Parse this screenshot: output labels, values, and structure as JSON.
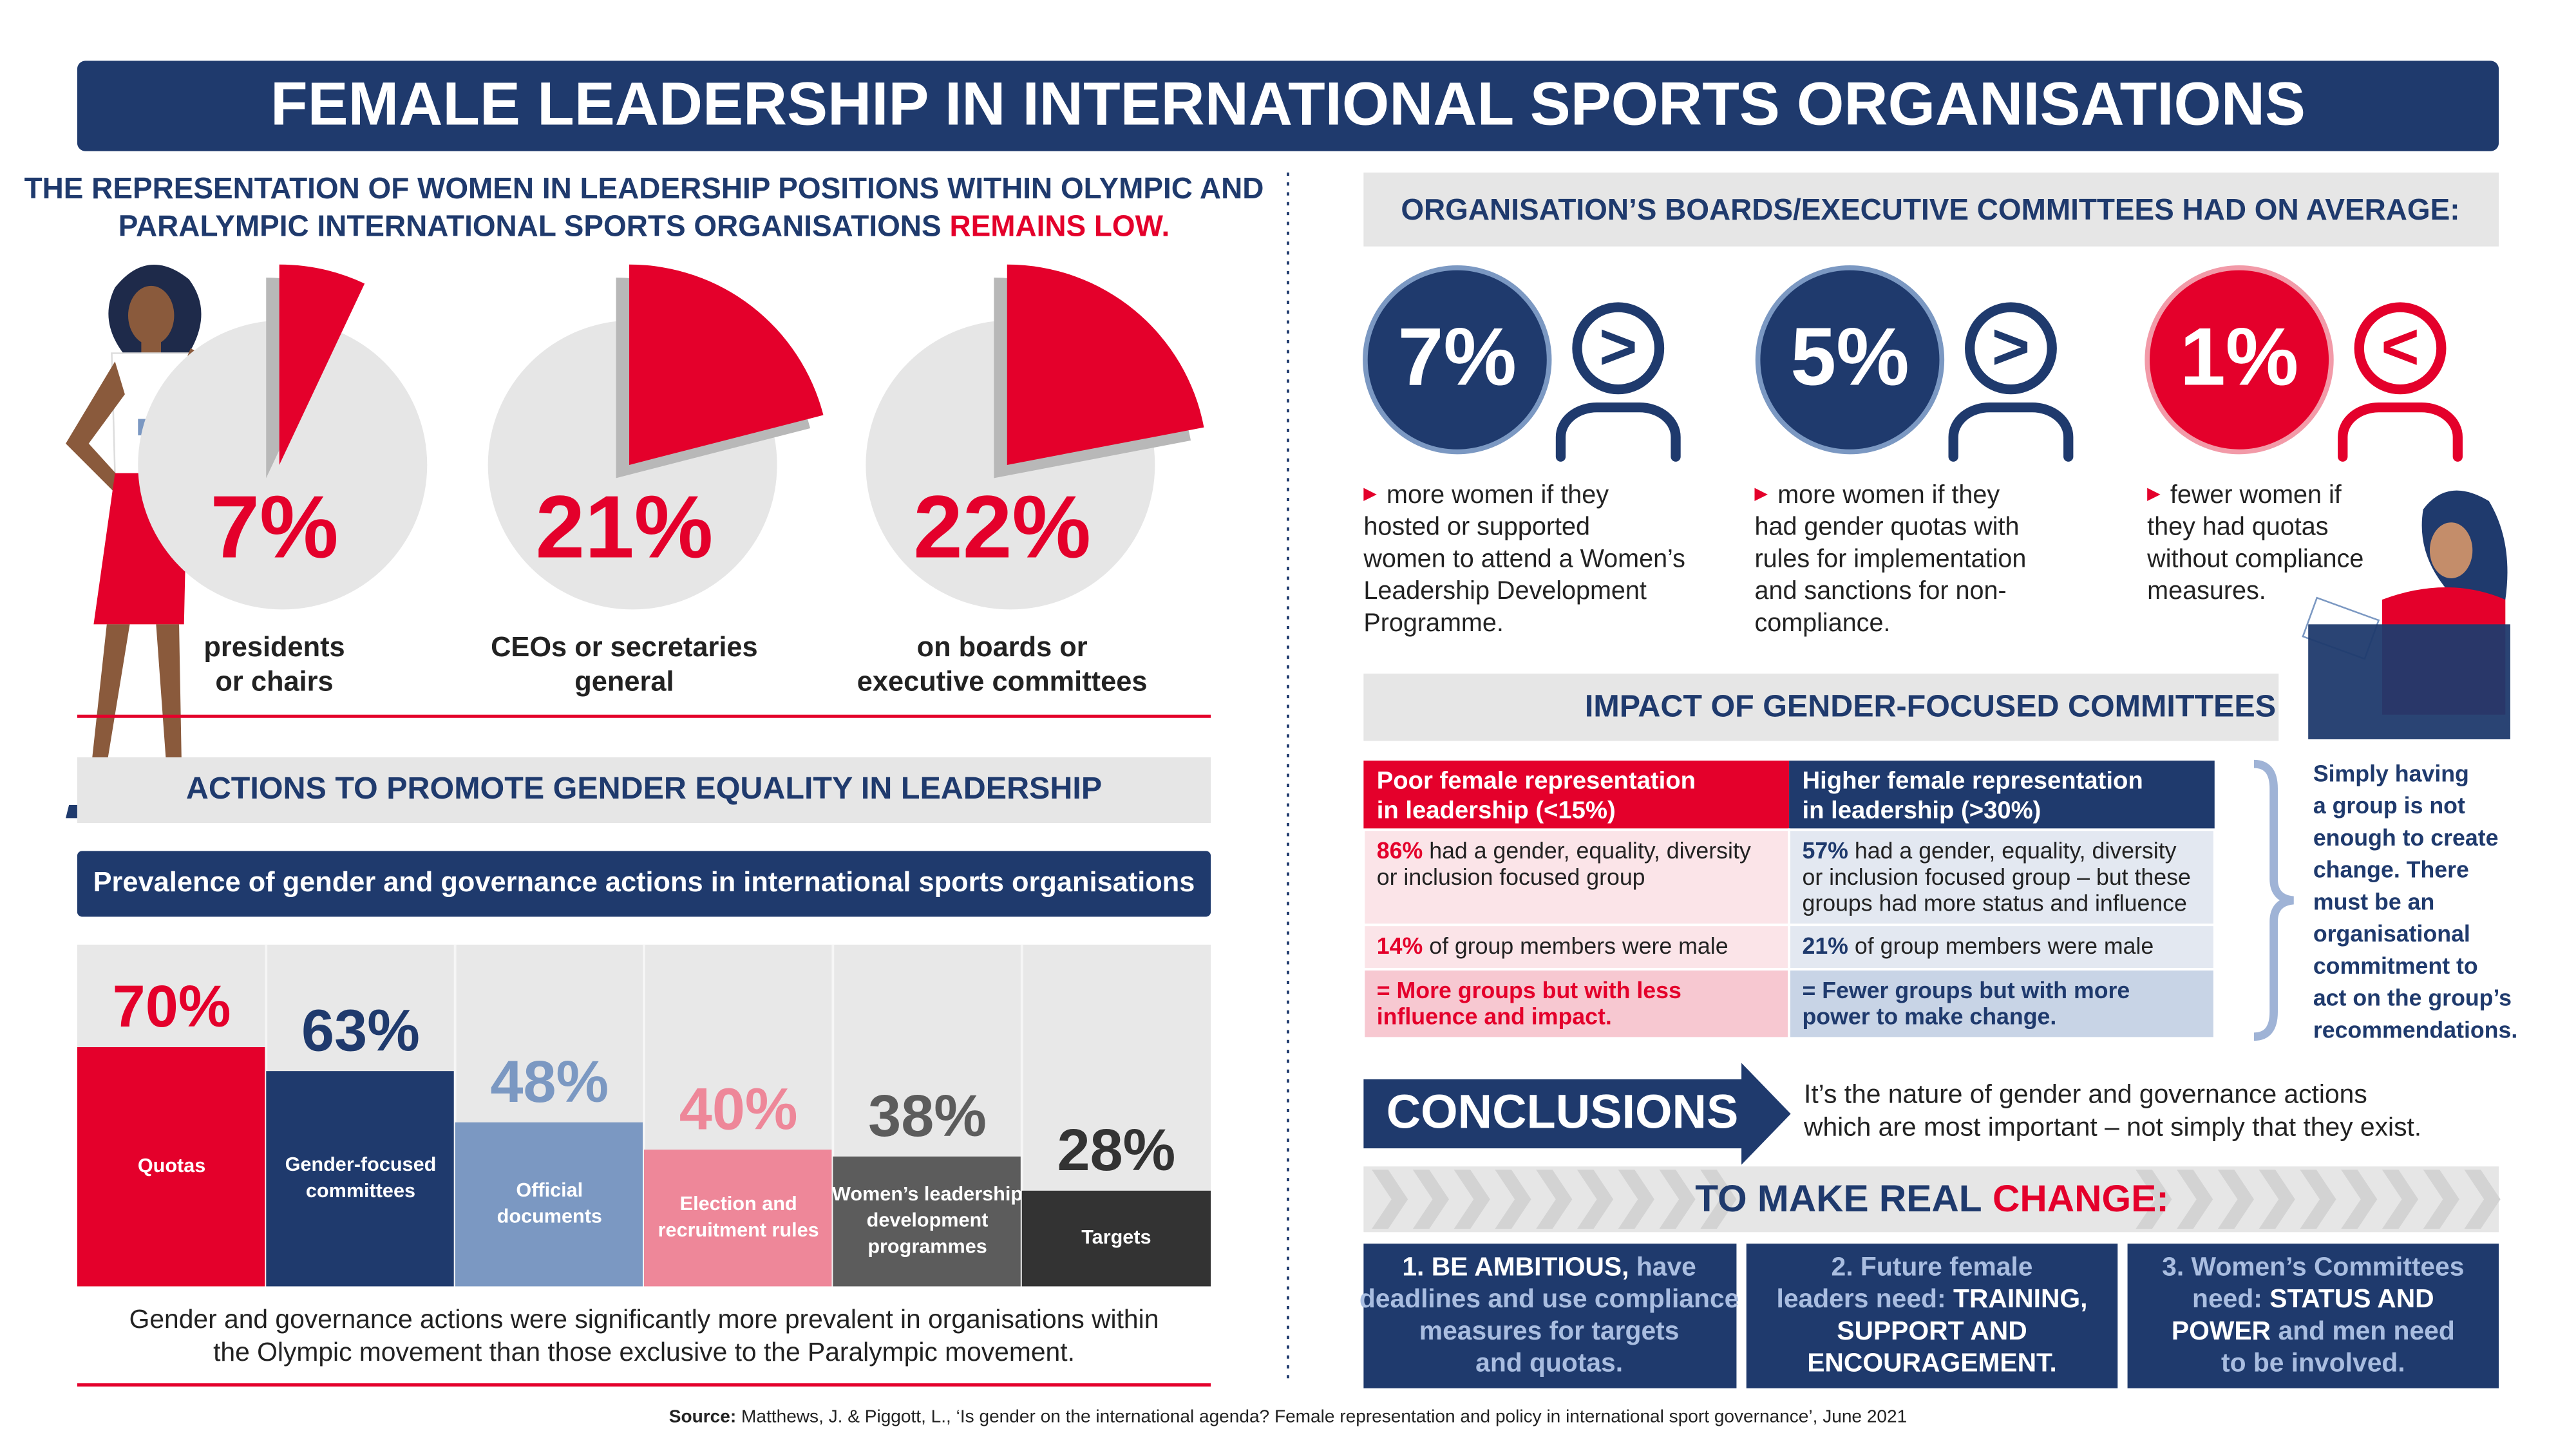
{
  "title": "FEMALE LEADERSHIP IN INTERNATIONAL SPORTS ORGANISATIONS",
  "representation": {
    "heading": [
      [
        {
          "text": "THE REPRESENTATION OF WOMEN IN LEADERSHIP POSITIONS WITHIN OLYMPIC AND"
        }
      ],
      [
        {
          "text": "PARALYMPIC INTERNATIONAL SPORTS ORGANISATIONS"
        },
        {
          "text": "REMAINS LOW.",
          "emphasis": true
        }
      ]
    ]
  },
  "chart_data": [
    {
      "type": "pie",
      "categories": [
        [
          "presidents",
          "or chairs"
        ],
        [
          "CEOs or secretaries",
          "general"
        ],
        [
          "on boards or",
          "executive committees"
        ]
      ],
      "values": [
        7,
        21,
        22
      ],
      "value_labels": [
        "7%",
        "21%",
        "22%"
      ],
      "color": "#e4002b"
    },
    {
      "type": "bar",
      "title": "Prevalence of gender and governance actions in international sports organisations",
      "categories": [
        [
          "Quotas"
        ],
        [
          "Gender-focused",
          "committees"
        ],
        [
          "Official",
          "documents"
        ],
        [
          "Election and",
          "recruitment rules"
        ],
        [
          "Women’s leadership",
          "development",
          "programmes"
        ],
        [
          "Targets"
        ]
      ],
      "values": [
        70,
        63,
        48,
        40,
        38,
        28
      ],
      "value_labels": [
        "70%",
        "63%",
        "48%",
        "40%",
        "38%",
        "28%"
      ],
      "colors": [
        "#e4002b",
        "#1f3a6d",
        "#7b98c2",
        "#ee8799",
        "#5c5c5c",
        "#333333"
      ],
      "ylim": [
        0,
        100
      ]
    }
  ],
  "actions": {
    "heading": "ACTIONS TO PROMOTE GENDER EQUALITY IN LEADERSHIP",
    "note": [
      "Gender and governance actions were significantly more prevalent in organisations within",
      "the Olympic movement than those exclusive to the Paralympic movement."
    ]
  },
  "boards": {
    "heading": "ORGANISATION’S BOARDS/EXECUTIVE COMMITTEES HAD ON AVERAGE:",
    "stats": [
      {
        "label": "7%",
        "symbol": ">",
        "color": "#1f3a6d",
        "description": [
          "more women if they",
          "hosted or supported",
          "women to attend a Women’s",
          "Leadership Development",
          "Programme."
        ]
      },
      {
        "label": "5%",
        "symbol": ">",
        "color": "#1f3a6d",
        "description": [
          "more women if they",
          "had gender quotas with",
          "rules for implementation",
          "and sanctions for non-",
          "compliance."
        ]
      },
      {
        "label": "1%",
        "symbol": "<",
        "color": "#e4002b",
        "description": [
          "fewer women if",
          "they had quotas",
          "without compliance",
          "measures."
        ]
      }
    ]
  },
  "impact": {
    "heading": "IMPACT OF GENDER-FOCUSED COMMITTEES",
    "columns": [
      [
        "Poor female representation",
        "in leadership (<15%)"
      ],
      [
        "Higher female representation",
        "in leadership (>30%)"
      ]
    ],
    "rows": [
      [
        [
          [
            {
              "text": "86%",
              "emphasis": true
            },
            {
              "text": "had a gender, equality, diversity"
            }
          ],
          [
            {
              "text": "or inclusion focused group"
            }
          ]
        ],
        [
          [
            {
              "text": "57%",
              "emphasis": true
            },
            {
              "text": "had a gender, equality, diversity"
            }
          ],
          [
            {
              "text": "or inclusion focused group – but these"
            }
          ],
          [
            {
              "text": "groups had more status and influence"
            }
          ]
        ]
      ],
      [
        [
          [
            {
              "text": "14%",
              "emphasis": true
            },
            {
              "text": "of group members were male"
            }
          ]
        ],
        [
          [
            {
              "text": "21%",
              "emphasis": true
            },
            {
              "text": "of group members were male"
            }
          ]
        ]
      ],
      [
        [
          [
            {
              "text": "= More groups but with less",
              "emphasis": true
            }
          ],
          [
            {
              "text": "influence and impact.",
              "emphasis": true
            }
          ]
        ],
        [
          [
            {
              "text": "= Fewer groups but with more",
              "emphasis": true
            }
          ],
          [
            {
              "text": "power to make change.",
              "emphasis": true
            }
          ]
        ]
      ]
    ],
    "note": [
      "Simply having",
      "a group is not",
      "enough to create",
      "change. There",
      "must be an",
      "organisational",
      "commitment to",
      "act on the group’s",
      "recommendations."
    ]
  },
  "conclusions": {
    "label": "CONCLUSIONS",
    "text": [
      "It’s the nature of gender and governance actions",
      "which are most important – not simply that they exist."
    ]
  },
  "change": {
    "heading": [
      {
        "text": "TO MAKE REAL"
      },
      {
        "text": "CHANGE:",
        "emphasis": true
      }
    ],
    "boxes": [
      [
        [
          {
            "text": "1. BE AMBITIOUS,",
            "emphasis": true
          },
          {
            "text": "have"
          }
        ],
        [
          {
            "text": "deadlines and use compliance"
          }
        ],
        [
          {
            "text": "measures for targets"
          }
        ],
        [
          {
            "text": "and quotas."
          }
        ]
      ],
      [
        [
          {
            "text": "2. Future female"
          }
        ],
        [
          {
            "text": "leaders need:"
          },
          {
            "text": "TRAINING,",
            "emphasis": true
          }
        ],
        [
          {
            "text": "SUPPORT AND",
            "emphasis": true
          }
        ],
        [
          {
            "text": "ENCOURAGEMENT.",
            "emphasis": true
          }
        ]
      ],
      [
        [
          {
            "text": "3. Women’s Committees"
          }
        ],
        [
          {
            "text": "need:"
          },
          {
            "text": "STATUS AND",
            "emphasis": true
          }
        ],
        [
          {
            "text": "POWER",
            "emphasis": true
          },
          {
            "text": "and men need"
          }
        ],
        [
          {
            "text": "to be involved."
          }
        ]
      ]
    ]
  },
  "source": [
    {
      "text": "Source:",
      "emphasis": true
    },
    {
      "text": "Matthews, J. & Piggott, L., ‘Is gender on the international agenda? Female representation and policy in international sport governance’, June 2021"
    }
  ]
}
